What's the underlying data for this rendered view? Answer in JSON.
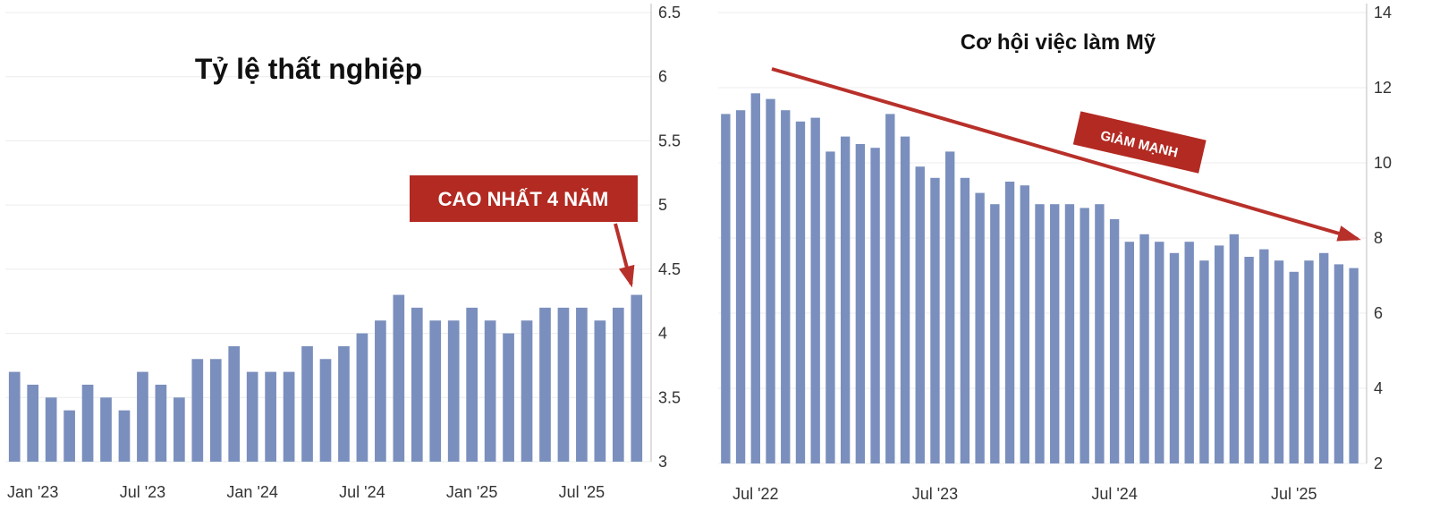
{
  "colors": {
    "bar": "#7a8fbd",
    "grid": "#ececec",
    "axis": "#bdbdbd",
    "callout_bg": "#b22a22",
    "arrow": "#b8302a",
    "callout_text": "#ffffff"
  },
  "chart_data": [
    {
      "type": "bar",
      "title": "Tỷ lệ thất nghiệp",
      "y_axis_side": "right",
      "ylim": [
        3,
        6.5
      ],
      "yticks": [
        "3",
        "3.5",
        "4",
        "4.5",
        "5",
        "5.5",
        "6",
        "6.5"
      ],
      "grid": true,
      "x_tick_labels": [
        "Jan '23",
        "Jul '23",
        "Jan '24",
        "Jul '24",
        "Jan '25",
        "Jul '25"
      ],
      "x_tick_indices": [
        1,
        7,
        13,
        19,
        25,
        31
      ],
      "values": [
        3.7,
        3.6,
        3.5,
        3.4,
        3.6,
        3.5,
        3.4,
        3.7,
        3.6,
        3.5,
        3.8,
        3.8,
        3.9,
        3.7,
        3.7,
        3.7,
        3.9,
        3.8,
        3.9,
        4.0,
        4.1,
        4.3,
        4.2,
        4.1,
        4.1,
        4.2,
        4.1,
        4.0,
        4.1,
        4.2,
        4.2,
        4.2,
        4.1,
        4.2,
        4.3
      ],
      "annotation": "CAO NHẤT 4 NĂM"
    },
    {
      "type": "bar",
      "title": "Cơ hội việc làm Mỹ",
      "y_axis_side": "right",
      "ylim": [
        2,
        14
      ],
      "yticks": [
        "2",
        "4",
        "6",
        "8",
        "10",
        "12",
        "14"
      ],
      "grid": true,
      "x_tick_labels": [
        "Jul '22",
        "Jul '23",
        "Jul '24",
        "Jul '25"
      ],
      "x_tick_indices": [
        2,
        14,
        26,
        38
      ],
      "values": [
        11.3,
        11.4,
        11.85,
        11.7,
        11.4,
        11.1,
        11.2,
        10.3,
        10.7,
        10.5,
        10.4,
        11.3,
        10.7,
        9.9,
        9.6,
        10.3,
        9.6,
        9.2,
        8.9,
        9.5,
        9.4,
        8.9,
        8.9,
        8.9,
        8.8,
        8.9,
        8.5,
        7.9,
        8.1,
        7.9,
        7.6,
        7.9,
        7.4,
        7.8,
        8.1,
        7.5,
        7.7,
        7.4,
        7.1,
        7.4,
        7.6,
        7.3,
        7.2
      ],
      "annotation": "GIẢM MẠNH"
    }
  ]
}
